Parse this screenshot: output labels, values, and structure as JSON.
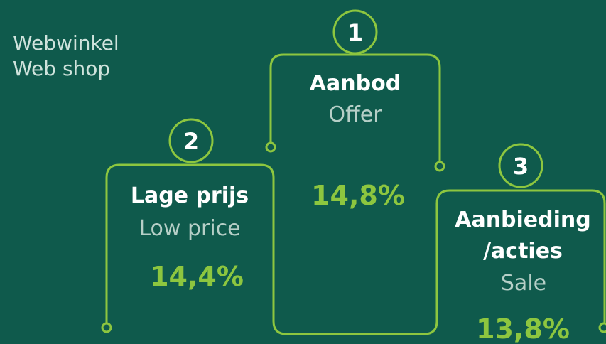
{
  "header": {
    "title": "Webwinkel",
    "subtitle": "Web shop"
  },
  "items": [
    {
      "rank": "1",
      "label": "Aanbod",
      "translation": "Offer",
      "value": "14,8%"
    },
    {
      "rank": "2",
      "label": "Lage prijs",
      "translation": "Low price",
      "value": "14,4%"
    },
    {
      "rank": "3",
      "label": "Aanbieding\n/acties",
      "translation": "Sale",
      "value": "13,8%"
    }
  ]
}
